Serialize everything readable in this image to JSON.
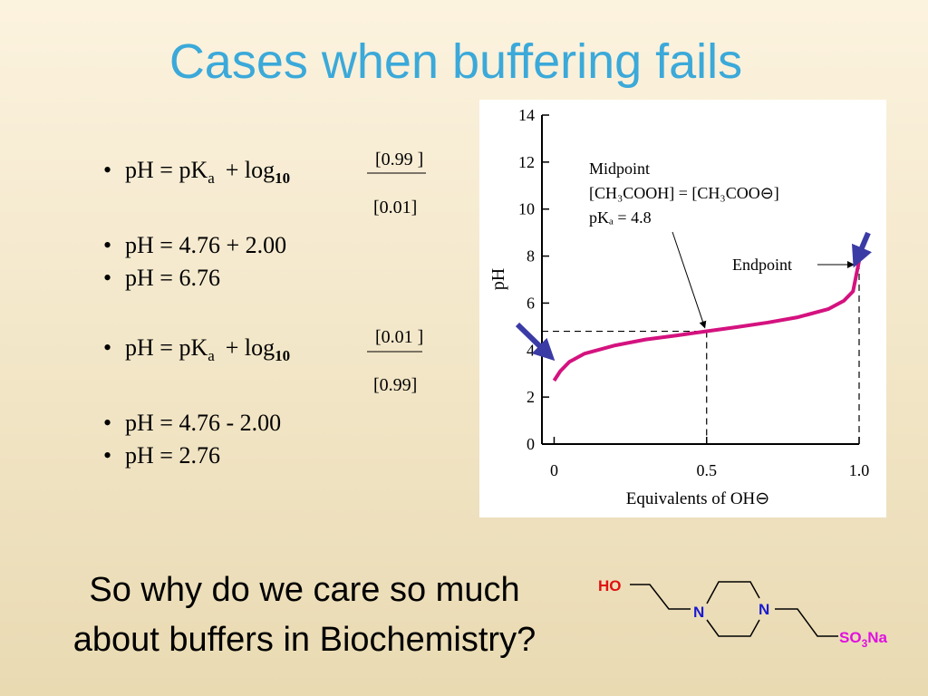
{
  "title": "Cases when buffering fails",
  "formula_1": {
    "lhs": "pH = pK",
    "sub_a": "a",
    "mid": "+ log",
    "sub_log": "10",
    "numerator": "[0.99 ]",
    "denominator": "[0.01]"
  },
  "results_1": [
    "pH = 4.76 + 2.00",
    "pH = 6.76"
  ],
  "formula_2": {
    "lhs": "pH = pK",
    "sub_a": "a",
    "mid": "+ log",
    "sub_log": "10",
    "numerator": "[0.01 ]",
    "denominator": "[0.99]"
  },
  "results_2": [
    "pH = 4.76 - 2.00",
    "pH = 2.76"
  ],
  "question": [
    "So why do we care so much",
    "about buffers in Biochemistry?"
  ],
  "molecule": {
    "hydroxyl": "HO",
    "nitrogen_1": "N",
    "nitrogen_2": "N",
    "sulfonate": "SO",
    "sulfonate_sub": "3",
    "sodium": "Na"
  },
  "chart_data": {
    "type": "line",
    "xlabel": "Equivalents of OH⊖",
    "ylabel": "pH",
    "xlim": [
      -0.04,
      1.0
    ],
    "ylim": [
      0,
      14
    ],
    "xticks": [
      0,
      0.5,
      {
        "value": 1.0,
        "label": "1.0"
      }
    ],
    "yticks": [
      0,
      2,
      4,
      6,
      8,
      10,
      12,
      14
    ],
    "annotations": {
      "midpoint": [
        "Midpoint",
        "[CH₃COOH] = [CH₃COO⊖]",
        "pKₐ = 4.8"
      ],
      "endpoint": "Endpoint"
    },
    "midpoint": {
      "x": 0.5,
      "y": 4.8
    },
    "endpoint_x": 1.0,
    "series": [
      {
        "name": "pH",
        "color": "#d4127f",
        "x": [
          0,
          0.02,
          0.05,
          0.1,
          0.2,
          0.3,
          0.4,
          0.5,
          0.6,
          0.7,
          0.8,
          0.9,
          0.95,
          0.98,
          1.0
        ],
        "values": [
          2.7,
          3.1,
          3.5,
          3.85,
          4.2,
          4.45,
          4.62,
          4.8,
          4.98,
          5.17,
          5.4,
          5.75,
          6.1,
          6.5,
          7.8
        ]
      }
    ]
  }
}
